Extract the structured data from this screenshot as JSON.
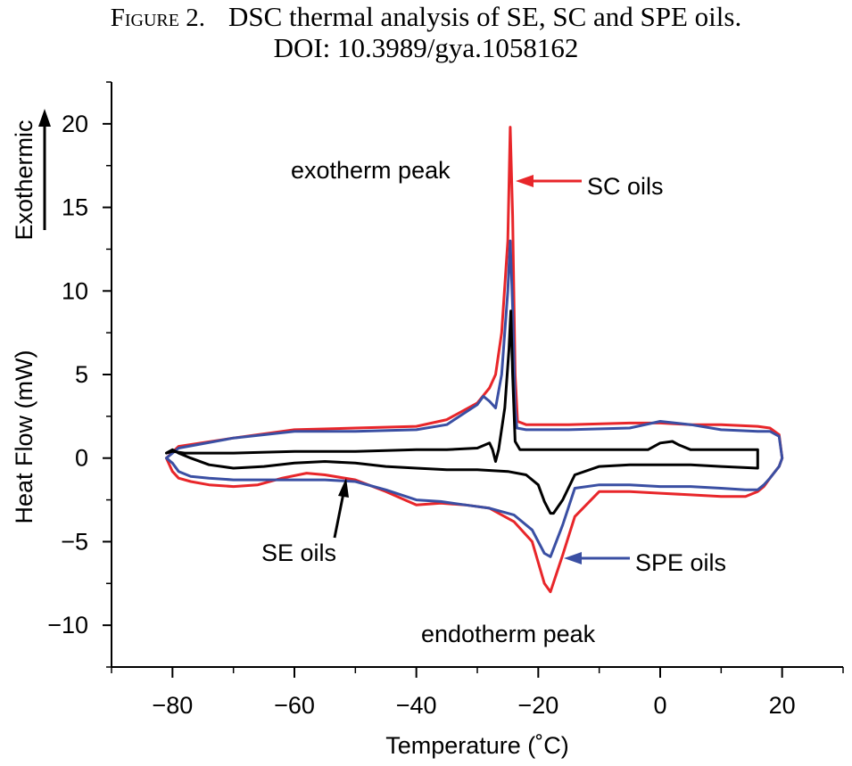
{
  "caption": {
    "figure_label": "Figure 2.",
    "line1": "DSC thermal analysis of SE, SC and SPE oils.",
    "line2": "DOI: 10.3989/gya.1058162"
  },
  "chart_data": {
    "type": "line",
    "xlabel": "Temperature (˚C)",
    "ylabel": "Heat Flow (mW)",
    "direction_label": "Exothermic",
    "xlim": [
      -90,
      30
    ],
    "ylim": [
      -12.5,
      22.5
    ],
    "xticks": [
      -80,
      -60,
      -40,
      -20,
      0,
      20
    ],
    "yticks": [
      -10,
      -5,
      0,
      5,
      10,
      15,
      20
    ],
    "xtick_labels": [
      "−80",
      "−60",
      "−40",
      "−20",
      "0",
      "20"
    ],
    "ytick_labels": [
      "−10",
      "−5",
      "0",
      "5",
      "10",
      "15",
      "20"
    ],
    "grid": false,
    "colors": {
      "sc": "#e8262a",
      "spe": "#3a4fa3",
      "se": "#000000"
    },
    "series": [
      {
        "name": "SC oils",
        "color": "#e8262a",
        "x": [
          -81,
          -79,
          -70,
          -60,
          -50,
          -40,
          -35,
          -30,
          -28,
          -27,
          -26,
          -25,
          -24.6,
          -24.2,
          -23.8,
          -23.4,
          -22,
          -15,
          -5,
          0,
          5,
          10,
          16,
          18,
          19.5,
          20,
          19.5,
          18,
          17,
          16,
          14,
          10,
          5,
          0,
          -5,
          -10,
          -14,
          -16,
          -18,
          -19,
          -21,
          -24,
          -28,
          -32,
          -36,
          -40,
          -45,
          -50,
          -55,
          -58,
          -62,
          -66,
          -70,
          -74,
          -77,
          -79,
          -80,
          -81
        ],
        "y": [
          0.0,
          0.7,
          1.2,
          1.7,
          1.8,
          1.9,
          2.3,
          3.3,
          4.2,
          5.0,
          7.5,
          13.0,
          19.8,
          14.5,
          5.0,
          2.2,
          2.0,
          2.0,
          2.1,
          2.1,
          2.0,
          2.0,
          1.9,
          1.8,
          1.4,
          0.0,
          -0.5,
          -1.2,
          -1.7,
          -2.0,
          -2.3,
          -2.3,
          -2.2,
          -2.1,
          -2.0,
          -2.0,
          -3.5,
          -5.8,
          -8.0,
          -7.5,
          -5.0,
          -3.8,
          -3.0,
          -2.8,
          -2.7,
          -2.8,
          -2.0,
          -1.3,
          -1.0,
          -0.9,
          -1.2,
          -1.6,
          -1.7,
          -1.6,
          -1.4,
          -1.2,
          -0.8,
          0.0
        ]
      },
      {
        "name": "SPE oils",
        "color": "#3a4fa3",
        "x": [
          -81,
          -79,
          -70,
          -60,
          -50,
          -40,
          -35,
          -30,
          -29,
          -28,
          -27,
          -26,
          -25,
          -24.6,
          -24.2,
          -23.8,
          -23.5,
          -22,
          -15,
          -5,
          0,
          5,
          10,
          16,
          18,
          19.5,
          20,
          19.5,
          18,
          17,
          16,
          14,
          10,
          5,
          0,
          -5,
          -10,
          -14,
          -16,
          -18,
          -19,
          -21,
          -24,
          -28,
          -32,
          -36,
          -40,
          -45,
          -50,
          -55,
          -60,
          -65,
          -70,
          -74,
          -77,
          -79,
          -80,
          -81
        ],
        "y": [
          0.0,
          0.6,
          1.2,
          1.6,
          1.6,
          1.7,
          2.0,
          3.2,
          3.7,
          3.4,
          3.0,
          5.0,
          10.0,
          13.0,
          9.0,
          3.0,
          1.8,
          1.7,
          1.7,
          1.8,
          2.2,
          2.0,
          1.7,
          1.6,
          1.6,
          1.3,
          0.0,
          -0.5,
          -1.2,
          -1.6,
          -1.9,
          -1.9,
          -1.8,
          -1.7,
          -1.7,
          -1.6,
          -1.6,
          -1.8,
          -4.0,
          -5.9,
          -5.7,
          -4.3,
          -3.4,
          -3.0,
          -2.8,
          -2.6,
          -2.5,
          -1.9,
          -1.4,
          -1.3,
          -1.3,
          -1.3,
          -1.3,
          -1.2,
          -1.1,
          -0.8,
          -0.3,
          0.0
        ]
      },
      {
        "name": "SE oils",
        "color": "#000000",
        "x": [
          -81,
          -80,
          -78,
          -70,
          -60,
          -50,
          -40,
          -35,
          -30,
          -28,
          -27.5,
          -27,
          -26.5,
          -25.5,
          -24.8,
          -24.5,
          -24.2,
          -23.8,
          -23,
          -20,
          -10,
          -2,
          0,
          2,
          3,
          5,
          7,
          10,
          16,
          16,
          10,
          5,
          0,
          -5,
          -10,
          -14,
          -16,
          -17.5,
          -18,
          -19,
          -20,
          -22,
          -25,
          -30,
          -35,
          -40,
          -45,
          -50,
          -55,
          -60,
          -65,
          -70,
          -74,
          -77,
          -79,
          -80,
          -81
        ],
        "y": [
          0.3,
          0.4,
          0.3,
          0.3,
          0.4,
          0.4,
          0.5,
          0.5,
          0.6,
          0.9,
          0.5,
          -0.2,
          0.5,
          3.0,
          6.5,
          8.8,
          5.0,
          1.0,
          0.5,
          0.5,
          0.5,
          0.5,
          0.9,
          1.0,
          0.8,
          0.5,
          0.5,
          0.5,
          0.5,
          -0.6,
          -0.5,
          -0.4,
          -0.4,
          -0.4,
          -0.5,
          -1.0,
          -2.5,
          -3.3,
          -3.3,
          -2.6,
          -1.6,
          -1.0,
          -0.8,
          -0.7,
          -0.7,
          -0.6,
          -0.5,
          -0.3,
          -0.2,
          -0.3,
          -0.5,
          -0.6,
          -0.4,
          0.0,
          0.3,
          0.5,
          0.3
        ]
      }
    ],
    "annotations": [
      {
        "text": "exotherm peak"
      },
      {
        "text": "SC oils"
      },
      {
        "text": "SE oils"
      },
      {
        "text": "SPE oils"
      },
      {
        "text": "endotherm peak"
      }
    ]
  }
}
